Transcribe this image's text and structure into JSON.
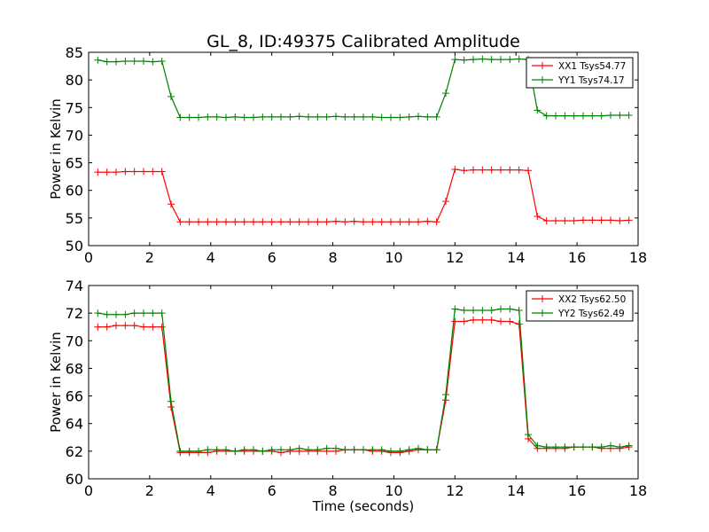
{
  "title": "GL_8, ID:49375 Calibrated Amplitude",
  "chart_data": [
    {
      "type": "line",
      "title": "GL_8, ID:49375 Calibrated Amplitude",
      "xlabel": "",
      "ylabel": "Power in Kelvin",
      "xlim": [
        0,
        18
      ],
      "ylim": [
        50,
        85
      ],
      "xticks": [
        0,
        2,
        4,
        6,
        8,
        10,
        12,
        14,
        16,
        18
      ],
      "yticks": [
        50,
        55,
        60,
        65,
        70,
        75,
        80,
        85
      ],
      "grid": false,
      "legend_position": "upper right",
      "x": [
        0.3,
        0.6,
        0.9,
        1.2,
        1.5,
        1.8,
        2.1,
        2.4,
        2.7,
        3.0,
        3.3,
        3.6,
        3.9,
        4.2,
        4.5,
        4.8,
        5.1,
        5.4,
        5.7,
        6.0,
        6.3,
        6.6,
        6.9,
        7.2,
        7.5,
        7.8,
        8.1,
        8.4,
        8.7,
        9.0,
        9.3,
        9.6,
        9.9,
        10.2,
        10.5,
        10.8,
        11.1,
        11.4,
        11.7,
        12.0,
        12.3,
        12.6,
        12.9,
        13.2,
        13.5,
        13.8,
        14.1,
        14.4,
        14.7,
        15.0,
        15.3,
        15.6,
        15.9,
        16.2,
        16.5,
        16.8,
        17.1,
        17.4,
        17.7
      ],
      "series": [
        {
          "name": "XX1 Tsys54.77",
          "color": "#ff0000",
          "values": [
            63.3,
            63.3,
            63.3,
            63.4,
            63.4,
            63.4,
            63.4,
            63.4,
            57.5,
            54.3,
            54.3,
            54.3,
            54.3,
            54.3,
            54.3,
            54.3,
            54.3,
            54.3,
            54.3,
            54.3,
            54.3,
            54.3,
            54.3,
            54.3,
            54.3,
            54.3,
            54.4,
            54.3,
            54.4,
            54.3,
            54.3,
            54.3,
            54.3,
            54.3,
            54.3,
            54.3,
            54.4,
            54.3,
            58.0,
            63.8,
            63.6,
            63.7,
            63.7,
            63.7,
            63.7,
            63.7,
            63.7,
            63.6,
            55.3,
            54.5,
            54.5,
            54.5,
            54.5,
            54.6,
            54.6,
            54.6,
            54.6,
            54.5,
            54.6
          ]
        },
        {
          "name": "YY1 Tsys74.17",
          "color": "#008000",
          "values": [
            83.6,
            83.3,
            83.3,
            83.4,
            83.4,
            83.4,
            83.3,
            83.4,
            77.0,
            73.2,
            73.2,
            73.2,
            73.3,
            73.3,
            73.2,
            73.3,
            73.2,
            73.2,
            73.3,
            73.3,
            73.3,
            73.3,
            73.4,
            73.3,
            73.3,
            73.3,
            73.4,
            73.3,
            73.3,
            73.3,
            73.3,
            73.2,
            73.2,
            73.2,
            73.3,
            73.4,
            73.3,
            73.3,
            77.6,
            83.7,
            83.6,
            83.7,
            83.8,
            83.7,
            83.7,
            83.7,
            83.8,
            83.7,
            74.5,
            73.5,
            73.5,
            73.5,
            73.5,
            73.5,
            73.5,
            73.5,
            73.6,
            73.6,
            73.6
          ]
        }
      ]
    },
    {
      "type": "line",
      "xlabel": "Time (seconds)",
      "ylabel": "Power in Kelvin",
      "xlim": [
        0,
        18
      ],
      "ylim": [
        60,
        74
      ],
      "xticks": [
        0,
        2,
        4,
        6,
        8,
        10,
        12,
        14,
        16,
        18
      ],
      "yticks": [
        60,
        62,
        64,
        66,
        68,
        70,
        72,
        74
      ],
      "grid": false,
      "legend_position": "upper right",
      "x": [
        0.3,
        0.6,
        0.9,
        1.2,
        1.5,
        1.8,
        2.1,
        2.4,
        2.7,
        3.0,
        3.3,
        3.6,
        3.9,
        4.2,
        4.5,
        4.8,
        5.1,
        5.4,
        5.7,
        6.0,
        6.3,
        6.6,
        6.9,
        7.2,
        7.5,
        7.8,
        8.1,
        8.4,
        8.7,
        9.0,
        9.3,
        9.6,
        9.9,
        10.2,
        10.5,
        10.8,
        11.1,
        11.4,
        11.7,
        12.0,
        12.3,
        12.6,
        12.9,
        13.2,
        13.5,
        13.8,
        14.1,
        14.4,
        14.7,
        15.0,
        15.3,
        15.6,
        15.9,
        16.2,
        16.5,
        16.8,
        17.1,
        17.4,
        17.7
      ],
      "series": [
        {
          "name": "XX2 Tsys62.50",
          "color": "#ff0000",
          "values": [
            71.0,
            71.0,
            71.1,
            71.1,
            71.1,
            71.0,
            71.0,
            71.0,
            65.2,
            61.9,
            61.9,
            61.9,
            61.9,
            62.0,
            62.0,
            62.0,
            62.0,
            62.0,
            62.0,
            62.0,
            61.9,
            62.0,
            62.0,
            62.0,
            62.0,
            62.0,
            62.0,
            62.1,
            62.1,
            62.1,
            62.0,
            62.0,
            61.9,
            61.9,
            62.0,
            62.1,
            62.1,
            62.1,
            65.7,
            71.4,
            71.4,
            71.5,
            71.5,
            71.5,
            71.4,
            71.4,
            71.2,
            62.9,
            62.2,
            62.2,
            62.2,
            62.2,
            62.3,
            62.3,
            62.3,
            62.2,
            62.2,
            62.2,
            62.3
          ]
        },
        {
          "name": "YY2 Tsys62.49",
          "color": "#008000",
          "values": [
            72.0,
            71.9,
            71.9,
            71.9,
            72.0,
            72.0,
            72.0,
            72.0,
            65.6,
            62.0,
            62.0,
            62.0,
            62.1,
            62.1,
            62.1,
            62.0,
            62.1,
            62.1,
            62.0,
            62.1,
            62.1,
            62.1,
            62.2,
            62.1,
            62.1,
            62.2,
            62.2,
            62.1,
            62.1,
            62.1,
            62.1,
            62.1,
            62.0,
            62.0,
            62.1,
            62.2,
            62.1,
            62.1,
            66.1,
            72.3,
            72.2,
            72.2,
            72.2,
            72.2,
            72.3,
            72.3,
            72.2,
            63.2,
            62.4,
            62.3,
            62.3,
            62.3,
            62.3,
            62.3,
            62.3,
            62.3,
            62.4,
            62.3,
            62.4
          ]
        }
      ]
    }
  ]
}
